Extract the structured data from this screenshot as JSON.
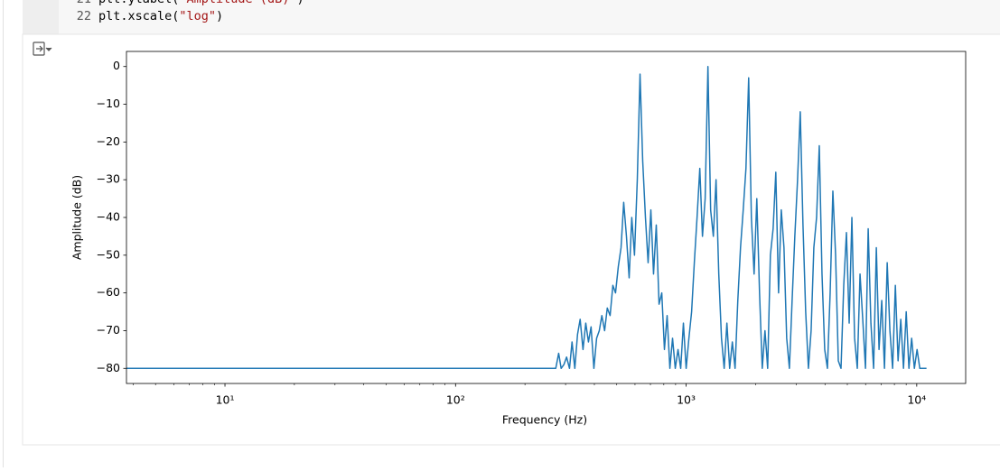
{
  "code_cell": {
    "lines": [
      {
        "number": "21",
        "tokens": [
          "plt.ylabel(",
          "\"Amplitude (dB)\"",
          ")"
        ]
      },
      {
        "number": "22",
        "tokens": [
          "plt.xscale(",
          "\"log\"",
          ")"
        ]
      }
    ]
  },
  "chart_data": {
    "type": "line",
    "xlabel": "Frequency (Hz)",
    "ylabel": "Amplitude (dB)",
    "color": "#1f77b4",
    "xscale": "log",
    "xlim": [
      3.74,
      16300
    ],
    "ylim": [
      -84,
      4
    ],
    "xticks": [
      {
        "value": 10,
        "label": "10¹"
      },
      {
        "value": 100,
        "label": "10²"
      },
      {
        "value": 1000,
        "label": "10³"
      },
      {
        "value": 10000,
        "label": "10⁴"
      }
    ],
    "xminorticks": [
      4,
      5,
      6,
      7,
      8,
      9,
      20,
      30,
      40,
      50,
      60,
      70,
      80,
      90,
      200,
      300,
      400,
      500,
      600,
      700,
      800,
      900,
      2000,
      3000,
      4000,
      5000,
      6000,
      7000,
      8000,
      9000
    ],
    "yticks": [
      {
        "value": 0,
        "label": "0"
      },
      {
        "value": -10,
        "label": "−10"
      },
      {
        "value": -20,
        "label": "−20"
      },
      {
        "value": -30,
        "label": "−30"
      },
      {
        "value": -40,
        "label": "−40"
      },
      {
        "value": -50,
        "label": "−50"
      },
      {
        "value": -60,
        "label": "−60"
      },
      {
        "value": -70,
        "label": "−70"
      },
      {
        "value": -80,
        "label": "−80"
      }
    ],
    "x": [
      3.74,
      272,
      280,
      287,
      295,
      303,
      312,
      320,
      329,
      338,
      347,
      357,
      367,
      377,
      387,
      398,
      409,
      420,
      431,
      443,
      455,
      468,
      481,
      494,
      508,
      522,
      536,
      551,
      566,
      581,
      597,
      614,
      631,
      648,
      666,
      684,
      703,
      722,
      742,
      763,
      784,
      805,
      827,
      850,
      873,
      897,
      922,
      947,
      973,
      1000,
      1028,
      1056,
      1085,
      1115,
      1146,
      1177,
      1209,
      1243,
      1277,
      1312,
      1348,
      1385,
      1423,
      1462,
      1502,
      1544,
      1586,
      1630,
      1675,
      1721,
      1768,
      1817,
      1867,
      1918,
      1971,
      2025,
      2081,
      2138,
      2197,
      2257,
      2319,
      2383,
      2448,
      2516,
      2585,
      2656,
      2729,
      2804,
      2881,
      2960,
      3042,
      3125,
      3211,
      3299,
      3390,
      3483,
      3579,
      3678,
      3779,
      3883,
      3989,
      4099,
      4212,
      4328,
      4447,
      4569,
      4695,
      4824,
      4956,
      5093,
      5233,
      5377,
      5524,
      5676,
      5832,
      5993,
      6158,
      6327,
      6501,
      6680,
      6863,
      7052,
      7246,
      7445,
      7650,
      7860,
      8077,
      8299,
      8527,
      8761,
      9002,
      9250,
      9504,
      9766,
      10034,
      10310,
      11025
    ],
    "values": [
      -80,
      -80,
      -76,
      -80,
      -79,
      -77,
      -80,
      -73,
      -80,
      -71,
      -67,
      -75,
      -68,
      -73,
      -69,
      -80,
      -72,
      -70,
      -66,
      -70,
      -64,
      -66,
      -58,
      -60,
      -53,
      -48,
      -36,
      -45,
      -56,
      -40,
      -50,
      -30,
      -2,
      -25,
      -40,
      -52,
      -38,
      -55,
      -42,
      -63,
      -60,
      -75,
      -66,
      -80,
      -72,
      -80,
      -75,
      -80,
      -68,
      -80,
      -72,
      -65,
      -52,
      -40,
      -27,
      -45,
      -35,
      0,
      -38,
      -45,
      -30,
      -55,
      -72,
      -80,
      -68,
      -80,
      -73,
      -80,
      -62,
      -48,
      -38,
      -27,
      -3,
      -40,
      -55,
      -35,
      -60,
      -80,
      -70,
      -80,
      -50,
      -43,
      -28,
      -60,
      -38,
      -48,
      -72,
      -80,
      -62,
      -45,
      -30,
      -12,
      -42,
      -65,
      -80,
      -70,
      -48,
      -40,
      -21,
      -55,
      -75,
      -80,
      -60,
      -33,
      -50,
      -78,
      -80,
      -58,
      -44,
      -68,
      -40,
      -72,
      -80,
      -55,
      -67,
      -80,
      -43,
      -68,
      -80,
      -48,
      -75,
      -62,
      -80,
      -52,
      -70,
      -80,
      -58,
      -78,
      -67,
      -80,
      -65,
      -80,
      -72,
      -80,
      -75,
      -80,
      -80
    ]
  }
}
